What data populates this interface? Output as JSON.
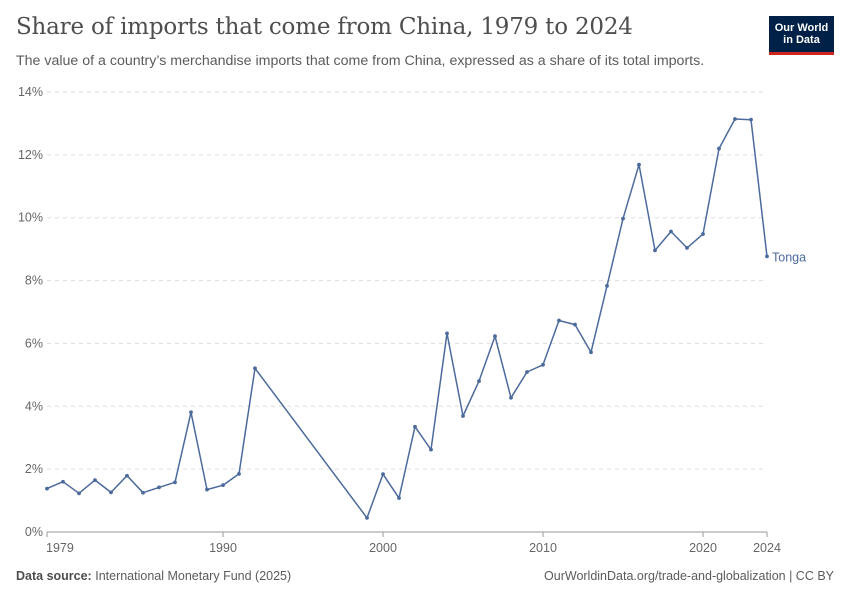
{
  "header": {
    "title": "Share of imports that come from China, 1979 to 2024",
    "subtitle": "The value of a country’s merchandise imports that come from China, expressed as a share of its total imports.",
    "logo_line1": "Our World",
    "logo_line2": "in Data"
  },
  "footer": {
    "source_label": "Data source:",
    "source_text": "International Monetary Fund (2025)",
    "right_text": "OurWorldinData.org/trade-and-globalization | CC BY"
  },
  "colors": {
    "series": "#4c6a9c",
    "grid": "#dddddd",
    "axis": "#999999"
  },
  "chart_data": {
    "type": "line",
    "title": "Share of imports that come from China, 1979 to 2024",
    "xlabel": "",
    "ylabel": "",
    "xlim": [
      1979,
      2024
    ],
    "ylim": [
      0,
      14
    ],
    "x_ticks": [
      1979,
      1990,
      2000,
      2010,
      2020,
      2024
    ],
    "y_ticks": [
      0,
      2,
      4,
      6,
      8,
      10,
      12,
      14
    ],
    "y_tick_labels": [
      "0%",
      "2%",
      "4%",
      "6%",
      "8%",
      "10%",
      "12%",
      "14%"
    ],
    "grid": "horizontal-dashed",
    "series": [
      {
        "name": "Tonga",
        "x": [
          1979,
          1980,
          1981,
          1982,
          1983,
          1984,
          1985,
          1986,
          1987,
          1988,
          1989,
          1990,
          1991,
          1992,
          1999,
          2000,
          2001,
          2002,
          2003,
          2004,
          2005,
          2006,
          2007,
          2008,
          2009,
          2010,
          2011,
          2012,
          2013,
          2014,
          2015,
          2016,
          2017,
          2018,
          2019,
          2020,
          2021,
          2022,
          2023,
          2024
        ],
        "values": [
          1.38,
          1.6,
          1.23,
          1.65,
          1.26,
          1.79,
          1.25,
          1.42,
          1.58,
          3.81,
          1.35,
          1.49,
          1.85,
          5.21,
          0.45,
          1.84,
          1.08,
          3.35,
          2.62,
          6.32,
          3.69,
          4.8,
          6.23,
          4.27,
          5.09,
          5.32,
          6.73,
          6.6,
          5.72,
          7.83,
          9.97,
          11.69,
          8.96,
          9.56,
          9.04,
          9.48,
          12.2,
          13.14,
          13.12,
          8.77
        ]
      }
    ]
  }
}
